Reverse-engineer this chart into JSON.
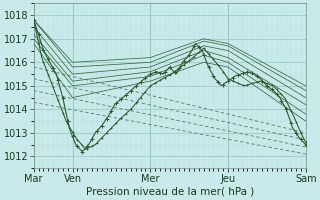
{
  "background_color": "#c8eaea",
  "plot_bg_color": "#c8eaea",
  "grid_major_color": "#a0cccc",
  "grid_minor_color": "#b8dede",
  "line_color": "#2d5a2d",
  "ylabel": "Pression niveau de la mer( hPa )",
  "ylim": [
    1011.5,
    1018.5
  ],
  "yticks": [
    1012,
    1013,
    1014,
    1015,
    1016,
    1017,
    1018
  ],
  "xtick_labels": [
    "Mar",
    "Ven",
    "Mer",
    "Jeu",
    "Sam"
  ],
  "xtick_positions": [
    0,
    24,
    72,
    120,
    168
  ],
  "label_fontsize": 7.5,
  "tick_fontsize": 7
}
